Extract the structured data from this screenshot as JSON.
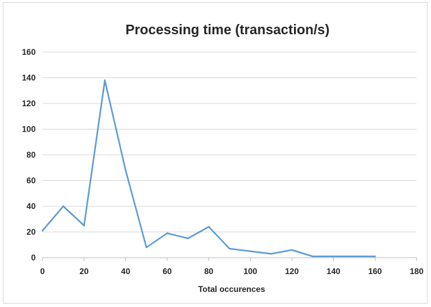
{
  "chart_data": {
    "type": "line",
    "title": "Processing time (transaction/s)",
    "xlabel": "Total occurences",
    "ylabel": "",
    "xlim": [
      0,
      180
    ],
    "ylim": [
      0,
      160
    ],
    "x_ticks": [
      0,
      20,
      40,
      60,
      80,
      100,
      120,
      140,
      160,
      180
    ],
    "y_ticks": [
      0,
      20,
      40,
      60,
      80,
      100,
      120,
      140,
      160
    ],
    "grid": "horizontal",
    "legend": "none",
    "series": [
      {
        "color": "#5b9bd5",
        "x": [
          0,
          10,
          20,
          30,
          40,
          50,
          60,
          70,
          80,
          90,
          100,
          110,
          120,
          130,
          140,
          150,
          160
        ],
        "y": [
          21,
          40,
          25,
          138,
          68,
          8,
          19,
          15,
          24,
          7,
          5,
          3,
          6,
          1,
          1,
          1,
          1
        ]
      }
    ]
  }
}
